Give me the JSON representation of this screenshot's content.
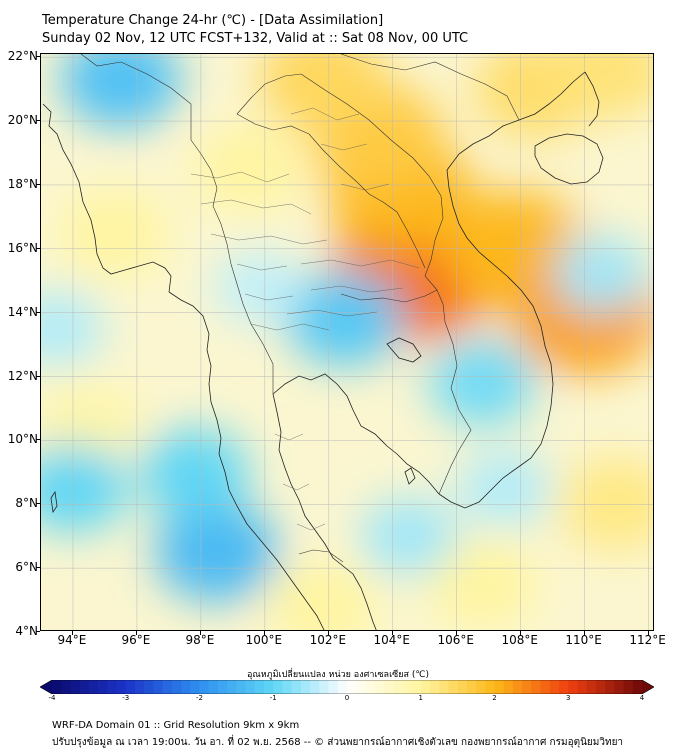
{
  "title": {
    "line1": "Temperature Change 24-hr (℃) - [Data Assimilation]",
    "line2": "Sunday 02 Nov, 12 UTC FCST+132, Valid at :: Sat 08 Nov, 00 UTC"
  },
  "map": {
    "lon_range": [
      93,
      112.2
    ],
    "lat_range": [
      4,
      22.1
    ],
    "lat_ticks": [
      {
        "value": 22,
        "label": "22°N"
      },
      {
        "value": 20,
        "label": "20°N"
      },
      {
        "value": 18,
        "label": "18°N"
      },
      {
        "value": 16,
        "label": "16°N"
      },
      {
        "value": 14,
        "label": "14°N"
      },
      {
        "value": 12,
        "label": "12°N"
      },
      {
        "value": 10,
        "label": "10°N"
      },
      {
        "value": 8,
        "label": "8°N"
      },
      {
        "value": 6,
        "label": "6°N"
      },
      {
        "value": 4,
        "label": "4°N"
      }
    ],
    "lon_ticks": [
      {
        "value": 94,
        "label": "94°E"
      },
      {
        "value": 96,
        "label": "96°E"
      },
      {
        "value": 98,
        "label": "98°E"
      },
      {
        "value": 100,
        "label": "100°E"
      },
      {
        "value": 102,
        "label": "102°E"
      },
      {
        "value": 104,
        "label": "104°E"
      },
      {
        "value": 106,
        "label": "106°E"
      },
      {
        "value": 108,
        "label": "108°E"
      },
      {
        "value": 110,
        "label": "110°E"
      },
      {
        "value": 112,
        "label": "112°E"
      }
    ],
    "field_blobs": [
      {
        "lon": 104.7,
        "lat": 15.2,
        "value": 2.6
      },
      {
        "lon": 104.2,
        "lat": 17.8,
        "value": 2.0
      },
      {
        "lon": 103.5,
        "lat": 19.5,
        "value": 1.7
      },
      {
        "lon": 101.8,
        "lat": 21.3,
        "value": 1.5
      },
      {
        "lon": 107.8,
        "lat": 16.0,
        "value": 2.0
      },
      {
        "lon": 110.0,
        "lat": 14.0,
        "value": 2.2
      },
      {
        "lon": 108.5,
        "lat": 21.0,
        "value": 1.4
      },
      {
        "lon": 110.8,
        "lat": 21.6,
        "value": 1.3
      },
      {
        "lon": 99.5,
        "lat": 18.5,
        "value": 1.0
      },
      {
        "lon": 95.3,
        "lat": 16.5,
        "value": 1.0
      },
      {
        "lon": 94.5,
        "lat": 10.5,
        "value": 0.9
      },
      {
        "lon": 106.8,
        "lat": 5.5,
        "value": 1.0
      },
      {
        "lon": 111.0,
        "lat": 8.0,
        "value": 1.2
      },
      {
        "lon": 101.8,
        "lat": 4.8,
        "value": 1.0
      },
      {
        "lon": 95.5,
        "lat": 21.3,
        "value": -1.3
      },
      {
        "lon": 98.5,
        "lat": 6.5,
        "value": -1.4
      },
      {
        "lon": 97.8,
        "lat": 9.0,
        "value": -1.0
      },
      {
        "lon": 102.5,
        "lat": 13.8,
        "value": -1.2
      },
      {
        "lon": 106.8,
        "lat": 11.8,
        "value": -0.9
      },
      {
        "lon": 94.0,
        "lat": 8.5,
        "value": -1.0
      },
      {
        "lon": 110.5,
        "lat": 15.2,
        "value": -0.6
      },
      {
        "lon": 99.8,
        "lat": 14.8,
        "value": -0.4
      },
      {
        "lon": 93.5,
        "lat": 13.5,
        "value": -0.5
      },
      {
        "lon": 104.5,
        "lat": 7.0,
        "value": -0.6
      },
      {
        "lon": 107.5,
        "lat": 8.5,
        "value": -0.5
      }
    ]
  },
  "colorbar": {
    "title": "อุณหภูมิเปลี่ยนแปลง หน่วย องศาเซลเซียส (℃)",
    "min": -4,
    "max": 4,
    "ticks": [
      {
        "value": -4,
        "label": "-4"
      },
      {
        "value": -3,
        "label": "-3"
      },
      {
        "value": -2,
        "label": "-2"
      },
      {
        "value": -1,
        "label": "-1"
      },
      {
        "value": 0,
        "label": "0"
      },
      {
        "value": 1,
        "label": "1"
      },
      {
        "value": 2,
        "label": "2"
      },
      {
        "value": 3,
        "label": "3"
      },
      {
        "value": 4,
        "label": "4"
      }
    ],
    "colors": [
      "#0a0a6e",
      "#1c33c8",
      "#2f8ff0",
      "#5fd6f5",
      "#ffffff",
      "#fff5a0",
      "#fdb81a",
      "#f04010",
      "#6e0a0a"
    ]
  },
  "footer": {
    "line1": "WRF-DA Domain 01 :: Grid Resolution 9km x 9km",
    "line2": "ปรับปรุงข้อมูล ณ เวลา 19:00น. วัน อา. ที่ 02 พ.ย. 2568 -- © ส่วนพยากรณ์อากาศเชิงตัวเลข กองพยากรณ์อากาศ กรมอุตุนิยมวิทยา"
  }
}
